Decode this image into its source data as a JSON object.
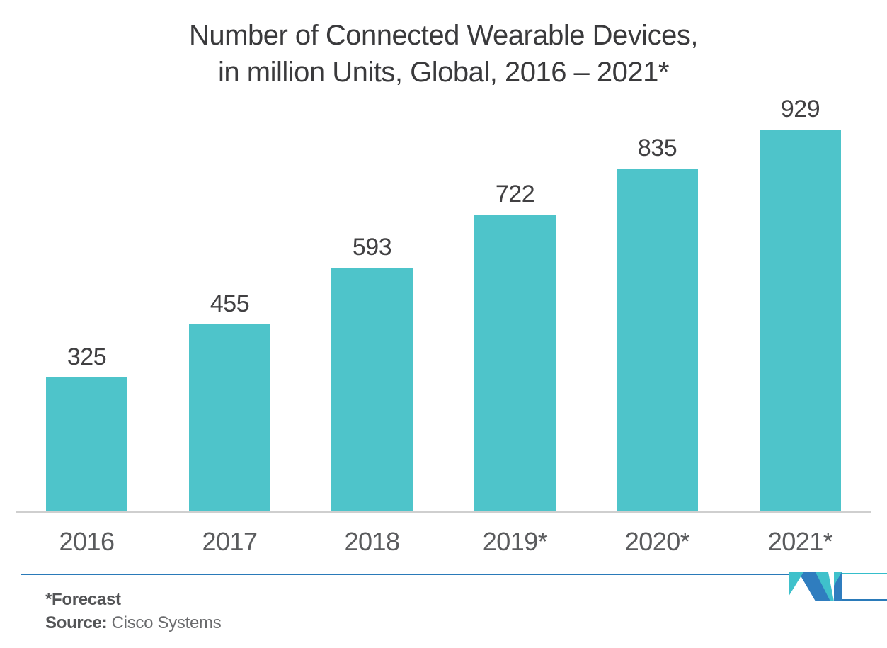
{
  "title": {
    "line1": "Number of Connected Wearable Devices,",
    "line2": "in million Units, Global, 2016 – 2021*"
  },
  "chart_data": {
    "type": "bar",
    "title": "Number of Connected Wearable Devices, in million Units, Global, 2016 – 2021*",
    "categories": [
      "2016",
      "2017",
      "2018",
      "2019*",
      "2020*",
      "2021*"
    ],
    "values": [
      325,
      455,
      593,
      722,
      835,
      929
    ],
    "xlabel": "",
    "ylabel": "",
    "ylim": [
      0,
      1000
    ],
    "grid": false,
    "legend": "none",
    "value_labels_shown": true,
    "bar_color": "#4ec4ca"
  },
  "footer": {
    "footnote": "*Forecast",
    "source_label": "Source:",
    "source_value": "Cisco Systems"
  },
  "logo": {
    "name": "mordor-intelligence-m-monogram",
    "blue": "#2f7dbf",
    "teal": "#3fc1cb"
  },
  "colors": {
    "bar": "#4ec4ca",
    "axis_line": "#cfcfcf",
    "divider_blue": "#2a7ab9",
    "divider_teal": "#35becb",
    "title_text": "#3a3a3c",
    "value_text": "#414042",
    "year_text": "#5a5b5d",
    "footer_text": "#545557"
  }
}
